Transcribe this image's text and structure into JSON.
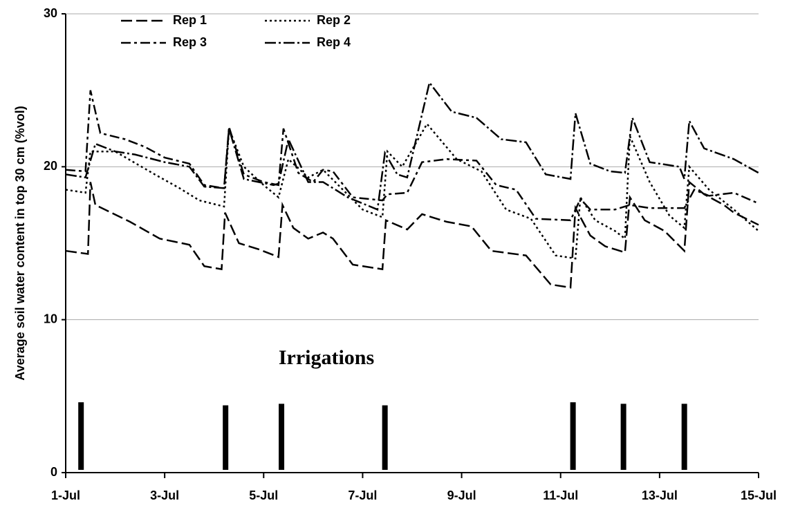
{
  "chart_data": {
    "type": "line",
    "y_label": "Average soil water content in top 30 cm (%vol)",
    "xlim": [
      1,
      15
    ],
    "xticks": [
      {
        "value": 1,
        "label": "1-Jul"
      },
      {
        "value": 3,
        "label": "3-Jul"
      },
      {
        "value": 5,
        "label": "5-Jul"
      },
      {
        "value": 7,
        "label": "7-Jul"
      },
      {
        "value": 9,
        "label": "9-Jul"
      },
      {
        "value": 11,
        "label": "11-Jul"
      },
      {
        "value": 13,
        "label": "13-Jul"
      },
      {
        "value": 15,
        "label": "15-Jul"
      }
    ],
    "ylim": [
      0,
      30
    ],
    "yticks": [
      0,
      10,
      20,
      30
    ],
    "grid": true,
    "legend": "upper left",
    "series": [
      {
        "name": "Rep 1",
        "color": "#000000",
        "dash": "16,6",
        "x": [
          1,
          1.45,
          1.5,
          1.6,
          2.3,
          2.9,
          3.5,
          3.8,
          4.15,
          4.22,
          4.5,
          4.9,
          5.3,
          5.38,
          5.6,
          5.9,
          6.2,
          6.4,
          6.8,
          7.4,
          7.47,
          7.9,
          8.2,
          8.7,
          9.2,
          9.6,
          10.3,
          10.8,
          11.2,
          11.3,
          11.6,
          11.9,
          12.3,
          12.4,
          12.7,
          13.1,
          13.5,
          13.6,
          13.9,
          14.3,
          14.5,
          15
        ],
        "values": [
          14.5,
          14.3,
          19,
          17.5,
          16.4,
          15.3,
          14.9,
          13.5,
          13.3,
          17,
          15,
          14.6,
          14.1,
          17.5,
          16,
          15.3,
          15.7,
          15.3,
          13.6,
          13.3,
          16.5,
          15.9,
          16.9,
          16.4,
          16.1,
          14.5,
          14.2,
          12.3,
          12.1,
          17.3,
          15.5,
          14.8,
          14.4,
          18,
          16.5,
          15.8,
          14.5,
          19,
          18.2,
          17.5,
          17,
          16.2
        ]
      },
      {
        "name": "Rep 2",
        "color": "#000000",
        "dash": "3,4",
        "x": [
          1,
          1.4,
          1.5,
          2,
          2.8,
          3.3,
          3.7,
          4.2,
          4.3,
          4.6,
          5,
          5.3,
          5.5,
          5.9,
          6.2,
          6.6,
          7,
          7.4,
          7.5,
          7.8,
          8.3,
          8.9,
          9.4,
          9.9,
          10.4,
          10.9,
          11.3,
          11.4,
          11.7,
          12.1,
          12.3,
          12.4,
          12.8,
          13.2,
          13.5,
          13.6,
          14,
          14.5,
          15
        ],
        "values": [
          18.5,
          18.3,
          21,
          21,
          19.5,
          18.6,
          17.8,
          17.4,
          22.5,
          20,
          18.8,
          18,
          20.5,
          19.3,
          19.8,
          18.5,
          17.2,
          16.7,
          21,
          20,
          22.8,
          20.5,
          19.7,
          17.2,
          16.6,
          14.2,
          14,
          18,
          16.5,
          15.8,
          15.3,
          22,
          19,
          16.8,
          16,
          20,
          18.5,
          17.2,
          15.8
        ]
      },
      {
        "name": "Rep 3",
        "color": "#000000",
        "dash": "14,5,4,5",
        "x": [
          1,
          1.4,
          1.5,
          1.7,
          2.2,
          2.6,
          3,
          3.5,
          3.8,
          4.2,
          4.3,
          4.6,
          5,
          5.3,
          5.4,
          5.7,
          6,
          6.2,
          6.4,
          6.8,
          7.4,
          7.5,
          7.9,
          8.2,
          8.7,
          9.3,
          9.7,
          10.1,
          10.5,
          11.2,
          11.4,
          11.6,
          12.1,
          12.4,
          12.8,
          13.5,
          13.7,
          14,
          14.5,
          15
        ],
        "values": [
          19.8,
          19.7,
          25,
          22.2,
          21.8,
          21.3,
          20.6,
          20.2,
          18.8,
          18.6,
          22.6,
          19.5,
          19,
          18.8,
          22.5,
          19.6,
          19,
          19.8,
          19.7,
          18,
          17.8,
          18.2,
          18.3,
          20.3,
          20.5,
          20.4,
          18.8,
          18.5,
          16.6,
          16.5,
          17.9,
          17.2,
          17.2,
          17.5,
          17.3,
          17.3,
          18.5,
          18.1,
          18.3,
          17.6
        ]
      },
      {
        "name": "Rep 4",
        "color": "#000000",
        "dash": "16,4,3,4",
        "x": [
          1,
          1.4,
          1.6,
          2,
          2.4,
          3,
          3.5,
          3.8,
          4.2,
          4.3,
          4.6,
          5.2,
          5.3,
          5.5,
          5.9,
          6.2,
          6.7,
          7.3,
          7.45,
          7.7,
          7.9,
          8.35,
          8.8,
          9.3,
          9.8,
          10.3,
          10.7,
          11.2,
          11.3,
          11.6,
          12,
          12.3,
          12.45,
          12.8,
          13.4,
          13.5,
          13.6,
          13.9,
          14.5,
          15
        ],
        "values": [
          19.5,
          19.3,
          21.5,
          21,
          20.8,
          20.3,
          20,
          18.7,
          18.6,
          22.5,
          19.2,
          18.8,
          18.9,
          21.8,
          19,
          19,
          18,
          17.2,
          20.9,
          19.5,
          19.3,
          25.5,
          23.6,
          23.2,
          21.8,
          21.6,
          19.5,
          19.2,
          23.5,
          20.2,
          19.7,
          19.6,
          23.2,
          20.3,
          20,
          19.2,
          23,
          21.2,
          20.5,
          19.6
        ]
      }
    ],
    "irrigations": {
      "label": "Irrigations",
      "color": "#000000",
      "x": [
        1.31,
        4.23,
        5.36,
        7.45,
        11.25,
        12.27,
        13.5
      ],
      "values": [
        4.6,
        4.4,
        4.5,
        4.4,
        4.6,
        4.5,
        4.5
      ]
    }
  }
}
